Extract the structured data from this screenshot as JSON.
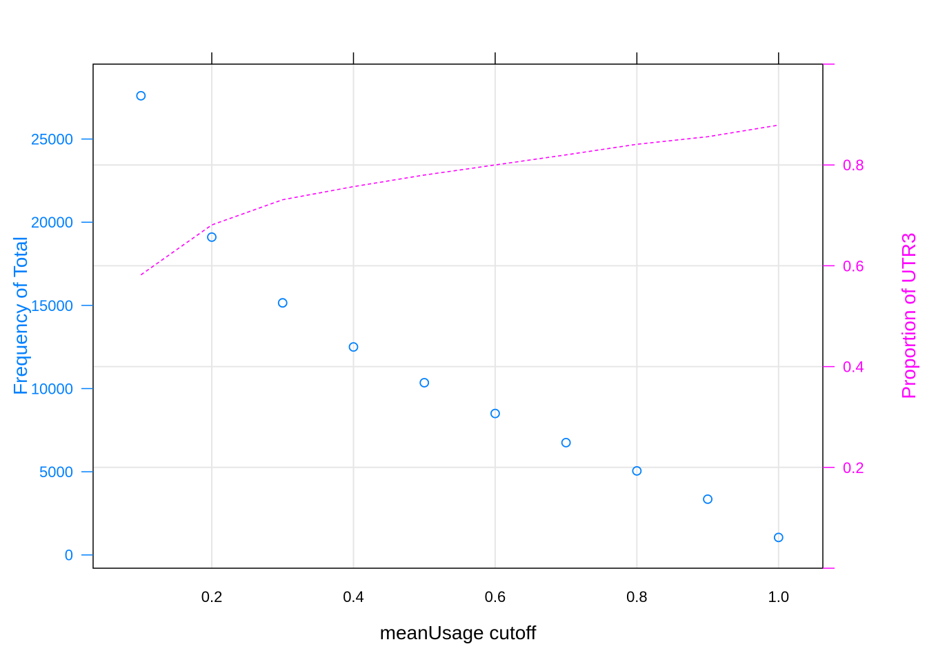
{
  "chart_data": {
    "type": "scatter",
    "xlabel": "meanUsage cutoff",
    "ylabel_left": "Frequency of Total",
    "ylabel_right": "Proportion of UTR3",
    "x_ticks": [
      0.2,
      0.4,
      0.6,
      0.8,
      1.0
    ],
    "x_tick_labels": [
      "0.2",
      "0.4",
      "0.6",
      "0.8",
      "1.0"
    ],
    "y_left_ticks": [
      0,
      5000,
      10000,
      15000,
      20000,
      25000
    ],
    "y_left_tick_labels": [
      "0",
      "5000",
      "10000",
      "15000",
      "20000",
      "25000"
    ],
    "y_right_ticks": [
      0.2,
      0.4,
      0.6,
      0.8
    ],
    "y_right_tick_labels": [
      "0.2",
      "0.4",
      "0.6",
      "0.8"
    ],
    "xlim": [
      0.0325,
      1.0625
    ],
    "ylim_left": [
      -800,
      29500
    ],
    "ylim_right": [
      0.0,
      1.0
    ],
    "grid": true,
    "series": [
      {
        "axis": "left",
        "style": "points",
        "color": "#0080ff",
        "x": [
          0.1,
          0.2,
          0.3,
          0.4,
          0.5,
          0.6,
          0.7,
          0.8,
          0.9,
          1.0
        ],
        "y": [
          27600,
          19100,
          15150,
          12500,
          10350,
          8500,
          6750,
          5050,
          3350,
          1050
        ]
      },
      {
        "axis": "right",
        "style": "dashed-line",
        "color": "#ff00ff",
        "x": [
          0.1,
          0.2,
          0.3,
          0.4,
          0.5,
          0.6,
          0.7,
          0.8,
          0.9,
          1.0
        ],
        "y": [
          0.582,
          0.681,
          0.731,
          0.757,
          0.78,
          0.8,
          0.82,
          0.841,
          0.856,
          0.879
        ]
      }
    ]
  }
}
